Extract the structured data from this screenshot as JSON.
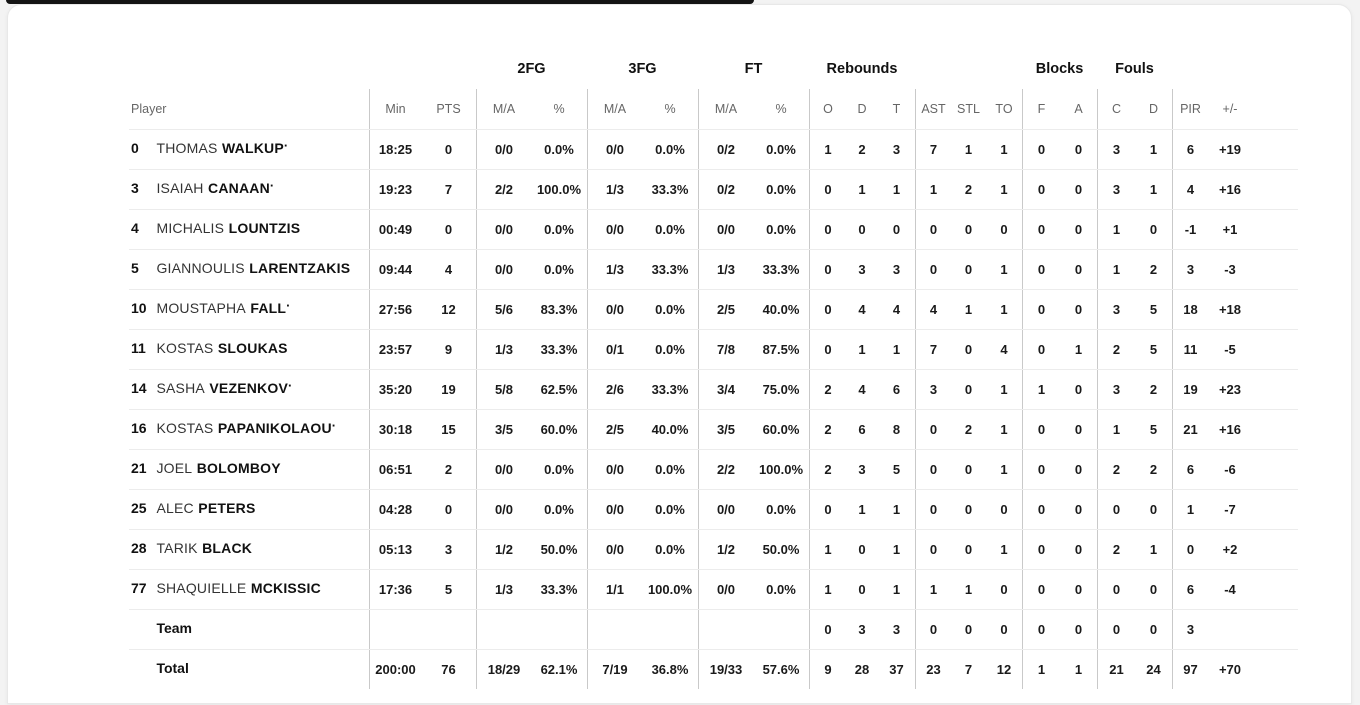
{
  "colors": {
    "top_accent_bar": "#141414",
    "card_background": "#ffffff",
    "vertical_divider": "#c9c9c9",
    "row_separator": "#ececec",
    "header_text": "#666666",
    "body_text": "#1a1a1a"
  },
  "table": {
    "groups": {
      "fg2": "2FG",
      "fg3": "3FG",
      "ft": "FT",
      "rebounds": "Rebounds",
      "blocks": "Blocks",
      "fouls": "Fouls"
    },
    "headers": {
      "player": "Player",
      "min": "Min",
      "pts": "PTS",
      "ma": "M/A",
      "pct": "%",
      "o": "O",
      "d": "D",
      "t": "T",
      "ast": "AST",
      "stl": "STL",
      "to": "TO",
      "f": "F",
      "a": "A",
      "c": "C",
      "d2": "D",
      "pir": "PIR",
      "pm": "+/-"
    },
    "starter_mark": "·",
    "rows": [
      {
        "num": "0",
        "first": "THOMAS",
        "last": "WALKUP",
        "starter": true,
        "min": "18:25",
        "pts": "0",
        "fg2": "0/0",
        "fg2p": "0.0%",
        "fg3": "0/0",
        "fg3p": "0.0%",
        "ft": "0/2",
        "ftp": "0.0%",
        "ro": "1",
        "rd": "2",
        "rt": "3",
        "ast": "7",
        "stl": "1",
        "to": "1",
        "bf": "0",
        "ba": "0",
        "fc": "3",
        "fd": "1",
        "pir": "6",
        "pm": "+19"
      },
      {
        "num": "3",
        "first": "ISAIAH",
        "last": "CANAAN",
        "starter": true,
        "min": "19:23",
        "pts": "7",
        "fg2": "2/2",
        "fg2p": "100.0%",
        "fg3": "1/3",
        "fg3p": "33.3%",
        "ft": "0/2",
        "ftp": "0.0%",
        "ro": "0",
        "rd": "1",
        "rt": "1",
        "ast": "1",
        "stl": "2",
        "to": "1",
        "bf": "0",
        "ba": "0",
        "fc": "3",
        "fd": "1",
        "pir": "4",
        "pm": "+16"
      },
      {
        "num": "4",
        "first": "MICHALIS",
        "last": "LOUNTZIS",
        "starter": false,
        "min": "00:49",
        "pts": "0",
        "fg2": "0/0",
        "fg2p": "0.0%",
        "fg3": "0/0",
        "fg3p": "0.0%",
        "ft": "0/0",
        "ftp": "0.0%",
        "ro": "0",
        "rd": "0",
        "rt": "0",
        "ast": "0",
        "stl": "0",
        "to": "0",
        "bf": "0",
        "ba": "0",
        "fc": "1",
        "fd": "0",
        "pir": "-1",
        "pm": "+1"
      },
      {
        "num": "5",
        "first": "GIANNOULIS",
        "last": "LARENTZAKIS",
        "starter": false,
        "min": "09:44",
        "pts": "4",
        "fg2": "0/0",
        "fg2p": "0.0%",
        "fg3": "1/3",
        "fg3p": "33.3%",
        "ft": "1/3",
        "ftp": "33.3%",
        "ro": "0",
        "rd": "3",
        "rt": "3",
        "ast": "0",
        "stl": "0",
        "to": "1",
        "bf": "0",
        "ba": "0",
        "fc": "1",
        "fd": "2",
        "pir": "3",
        "pm": "-3"
      },
      {
        "num": "10",
        "first": "MOUSTAPHA",
        "last": "FALL",
        "starter": true,
        "min": "27:56",
        "pts": "12",
        "fg2": "5/6",
        "fg2p": "83.3%",
        "fg3": "0/0",
        "fg3p": "0.0%",
        "ft": "2/5",
        "ftp": "40.0%",
        "ro": "0",
        "rd": "4",
        "rt": "4",
        "ast": "4",
        "stl": "1",
        "to": "1",
        "bf": "0",
        "ba": "0",
        "fc": "3",
        "fd": "5",
        "pir": "18",
        "pm": "+18"
      },
      {
        "num": "11",
        "first": "KOSTAS",
        "last": "SLOUKAS",
        "starter": false,
        "min": "23:57",
        "pts": "9",
        "fg2": "1/3",
        "fg2p": "33.3%",
        "fg3": "0/1",
        "fg3p": "0.0%",
        "ft": "7/8",
        "ftp": "87.5%",
        "ro": "0",
        "rd": "1",
        "rt": "1",
        "ast": "7",
        "stl": "0",
        "to": "4",
        "bf": "0",
        "ba": "1",
        "fc": "2",
        "fd": "5",
        "pir": "11",
        "pm": "-5"
      },
      {
        "num": "14",
        "first": "SASHA",
        "last": "VEZENKOV",
        "starter": true,
        "min": "35:20",
        "pts": "19",
        "fg2": "5/8",
        "fg2p": "62.5%",
        "fg3": "2/6",
        "fg3p": "33.3%",
        "ft": "3/4",
        "ftp": "75.0%",
        "ro": "2",
        "rd": "4",
        "rt": "6",
        "ast": "3",
        "stl": "0",
        "to": "1",
        "bf": "1",
        "ba": "0",
        "fc": "3",
        "fd": "2",
        "pir": "19",
        "pm": "+23"
      },
      {
        "num": "16",
        "first": "KOSTAS",
        "last": "PAPANIKOLAOU",
        "starter": true,
        "min": "30:18",
        "pts": "15",
        "fg2": "3/5",
        "fg2p": "60.0%",
        "fg3": "2/5",
        "fg3p": "40.0%",
        "ft": "3/5",
        "ftp": "60.0%",
        "ro": "2",
        "rd": "6",
        "rt": "8",
        "ast": "0",
        "stl": "2",
        "to": "1",
        "bf": "0",
        "ba": "0",
        "fc": "1",
        "fd": "5",
        "pir": "21",
        "pm": "+16"
      },
      {
        "num": "21",
        "first": "JOEL",
        "last": "BOLOMBOY",
        "starter": false,
        "min": "06:51",
        "pts": "2",
        "fg2": "0/0",
        "fg2p": "0.0%",
        "fg3": "0/0",
        "fg3p": "0.0%",
        "ft": "2/2",
        "ftp": "100.0%",
        "ro": "2",
        "rd": "3",
        "rt": "5",
        "ast": "0",
        "stl": "0",
        "to": "1",
        "bf": "0",
        "ba": "0",
        "fc": "2",
        "fd": "2",
        "pir": "6",
        "pm": "-6"
      },
      {
        "num": "25",
        "first": "ALEC",
        "last": "PETERS",
        "starter": false,
        "min": "04:28",
        "pts": "0",
        "fg2": "0/0",
        "fg2p": "0.0%",
        "fg3": "0/0",
        "fg3p": "0.0%",
        "ft": "0/0",
        "ftp": "0.0%",
        "ro": "0",
        "rd": "1",
        "rt": "1",
        "ast": "0",
        "stl": "0",
        "to": "0",
        "bf": "0",
        "ba": "0",
        "fc": "0",
        "fd": "0",
        "pir": "1",
        "pm": "-7"
      },
      {
        "num": "28",
        "first": "TARIK",
        "last": "BLACK",
        "starter": false,
        "min": "05:13",
        "pts": "3",
        "fg2": "1/2",
        "fg2p": "50.0%",
        "fg3": "0/0",
        "fg3p": "0.0%",
        "ft": "1/2",
        "ftp": "50.0%",
        "ro": "1",
        "rd": "0",
        "rt": "1",
        "ast": "0",
        "stl": "0",
        "to": "1",
        "bf": "0",
        "ba": "0",
        "fc": "2",
        "fd": "1",
        "pir": "0",
        "pm": "+2"
      },
      {
        "num": "77",
        "first": "SHAQUIELLE",
        "last": "MCKISSIC",
        "starter": false,
        "min": "17:36",
        "pts": "5",
        "fg2": "1/3",
        "fg2p": "33.3%",
        "fg3": "1/1",
        "fg3p": "100.0%",
        "ft": "0/0",
        "ftp": "0.0%",
        "ro": "1",
        "rd": "0",
        "rt": "1",
        "ast": "1",
        "stl": "1",
        "to": "0",
        "bf": "0",
        "ba": "0",
        "fc": "0",
        "fd": "0",
        "pir": "6",
        "pm": "-4"
      },
      {
        "label": "Team",
        "ro": "0",
        "rd": "3",
        "rt": "3",
        "ast": "0",
        "stl": "0",
        "to": "0",
        "bf": "0",
        "ba": "0",
        "fc": "0",
        "fd": "0",
        "pir": "3",
        "pm": ""
      },
      {
        "label": "Total",
        "min": "200:00",
        "pts": "76",
        "fg2": "18/29",
        "fg2p": "62.1%",
        "fg3": "7/19",
        "fg3p": "36.8%",
        "ft": "19/33",
        "ftp": "57.6%",
        "ro": "9",
        "rd": "28",
        "rt": "37",
        "ast": "23",
        "stl": "7",
        "to": "12",
        "bf": "1",
        "ba": "1",
        "fc": "21",
        "fd": "24",
        "pir": "97",
        "pm": "+70"
      }
    ]
  }
}
